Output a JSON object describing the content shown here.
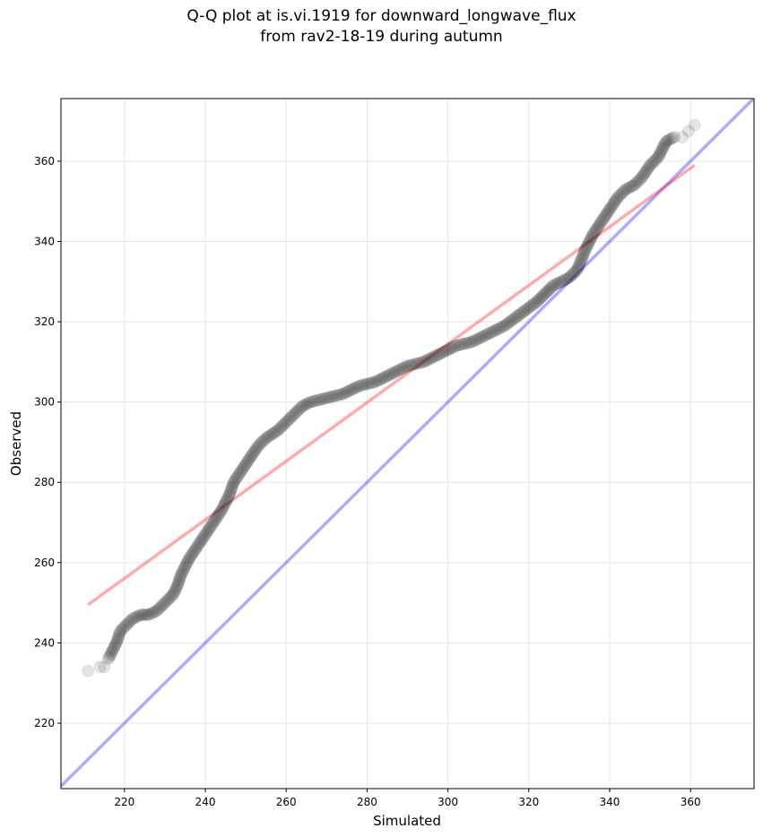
{
  "chart_data": {
    "type": "scatter",
    "title_line1": "Q-Q plot at is.vi.1919 for downward_longwave_flux",
    "title_line2": "from rav2-18-19 during autumn",
    "xlabel": "Simulated",
    "ylabel": "Observed",
    "xlim": [
      204.3,
      375.7
    ],
    "ylim": [
      203.7,
      375.6
    ],
    "xticks": [
      220,
      240,
      260,
      280,
      300,
      320,
      340,
      360
    ],
    "yticks": [
      220,
      240,
      260,
      280,
      300,
      320,
      340,
      360
    ],
    "grid": true,
    "points": [
      [
        211,
        233
      ],
      [
        214,
        234
      ],
      [
        215,
        234
      ],
      [
        216,
        236
      ],
      [
        217,
        238
      ],
      [
        218,
        240
      ],
      [
        219,
        243
      ],
      [
        220,
        244
      ],
      [
        221,
        245
      ],
      [
        222,
        246
      ],
      [
        224,
        247
      ],
      [
        226,
        247
      ],
      [
        228,
        248
      ],
      [
        230,
        250
      ],
      [
        232,
        252
      ],
      [
        233,
        254
      ],
      [
        234,
        257
      ],
      [
        235,
        259
      ],
      [
        236,
        261
      ],
      [
        238,
        264
      ],
      [
        240,
        267
      ],
      [
        242,
        270
      ],
      [
        244,
        273
      ],
      [
        246,
        277
      ],
      [
        247,
        280
      ],
      [
        249,
        283
      ],
      [
        251,
        286
      ],
      [
        253,
        289
      ],
      [
        255,
        291
      ],
      [
        258,
        293
      ],
      [
        260,
        295
      ],
      [
        262,
        297
      ],
      [
        264,
        299
      ],
      [
        266,
        300
      ],
      [
        270,
        301
      ],
      [
        274,
        302
      ],
      [
        278,
        304
      ],
      [
        282,
        305
      ],
      [
        286,
        307
      ],
      [
        290,
        309
      ],
      [
        294,
        310
      ],
      [
        298,
        312
      ],
      [
        302,
        314
      ],
      [
        306,
        315
      ],
      [
        310,
        317
      ],
      [
        314,
        319
      ],
      [
        318,
        322
      ],
      [
        322,
        325
      ],
      [
        326,
        329
      ],
      [
        330,
        331
      ],
      [
        332,
        333
      ],
      [
        334,
        338
      ],
      [
        336,
        342
      ],
      [
        338,
        345
      ],
      [
        340,
        348
      ],
      [
        342,
        351
      ],
      [
        344,
        353
      ],
      [
        346,
        354
      ],
      [
        348,
        356
      ],
      [
        350,
        359
      ],
      [
        352,
        361
      ],
      [
        353,
        363
      ],
      [
        354,
        365
      ],
      [
        356,
        366
      ],
      [
        358,
        366
      ],
      [
        361,
        369
      ]
    ],
    "fit_line": {
      "x": [
        211,
        361
      ],
      "y": [
        249.5,
        359
      ],
      "color": "#ff0000"
    },
    "identity_line": {
      "color": "#0000ff"
    }
  }
}
